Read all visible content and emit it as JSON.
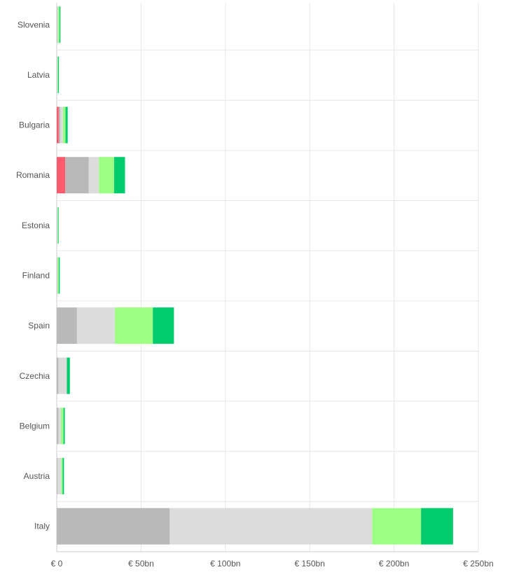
{
  "chart_data": {
    "type": "bar",
    "orientation": "horizontal",
    "stacked": true,
    "title": "",
    "xlabel": "",
    "ylabel": "",
    "xlim": [
      0,
      250
    ],
    "x_ticks": [
      0,
      50,
      100,
      150,
      200,
      250
    ],
    "x_tick_labels": [
      "€ 0",
      "€ 50bn",
      "€ 100bn",
      "€ 150bn",
      "€ 200bn",
      "€ 250bn"
    ],
    "grid": true,
    "legend": "none",
    "categories": [
      "Slovenia",
      "Latvia",
      "Bulgaria",
      "Romania",
      "Estonia",
      "Finland",
      "Spain",
      "Czechia",
      "Belgium",
      "Austria",
      "Italy"
    ],
    "series": [
      {
        "color": "#ff5a6e",
        "values": [
          0,
          0,
          1.2,
          5,
          0,
          0,
          0,
          0,
          0,
          0,
          0
        ]
      },
      {
        "color": "#b9b9b9",
        "values": [
          0.3,
          0.2,
          1,
          14,
          0.2,
          0.2,
          12,
          1,
          1,
          0.5,
          67
        ]
      },
      {
        "color": "#dcdcdc",
        "values": [
          0.5,
          0.3,
          1.5,
          6,
          0.3,
          0.3,
          22.5,
          5,
          1.5,
          2.2,
          120
        ]
      },
      {
        "color": "#9dff83",
        "values": [
          0.8,
          0.3,
          1.5,
          9,
          0.3,
          0.7,
          22.5,
          0,
          1.5,
          0.8,
          29
        ]
      },
      {
        "color": "#00cc6d",
        "values": [
          0.6,
          0.5,
          1.3,
          6.5,
          0.2,
          0.6,
          12.5,
          1.8,
          0.8,
          0.8,
          19
        ]
      }
    ]
  }
}
